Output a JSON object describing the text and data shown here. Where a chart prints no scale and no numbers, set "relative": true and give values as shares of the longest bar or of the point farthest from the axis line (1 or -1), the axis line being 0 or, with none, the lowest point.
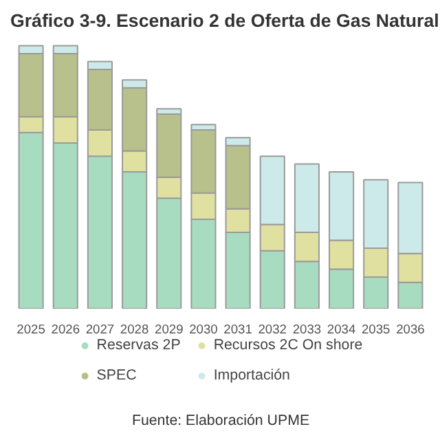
{
  "chart_data": {
    "type": "bar",
    "title": "Gráfico 3-9. Escenario 2 de Oferta de Gas Natural",
    "stacked": true,
    "relative": true,
    "legend": "bottom",
    "categories": [
      "2025",
      "2026",
      "2027",
      "2028",
      "2029",
      "2030",
      "2031",
      "2032",
      "2033",
      "2034",
      "2035",
      "2036"
    ],
    "series": [
      {
        "name": "Reservas 2P",
        "color": "#a8dcc0",
        "values": [
          0.67,
          0.63,
          0.58,
          0.52,
          0.42,
          0.34,
          0.29,
          0.22,
          0.18,
          0.15,
          0.12,
          0.1
        ]
      },
      {
        "name": "Recursos 2C On shore",
        "color": "#e0e0a0",
        "values": [
          0.06,
          0.1,
          0.1,
          0.08,
          0.08,
          0.1,
          0.09,
          0.1,
          0.11,
          0.11,
          0.11,
          0.11
        ]
      },
      {
        "name": "SPEC",
        "color": "#b8c08c",
        "values": [
          0.24,
          0.24,
          0.23,
          0.24,
          0.24,
          0.24,
          0.24,
          null,
          null,
          null,
          null,
          null
        ]
      },
      {
        "name": "Importación",
        "color": "#cdeaea",
        "values": [
          0.03,
          0.03,
          0.03,
          0.03,
          0.02,
          0.02,
          0.03,
          0.26,
          0.26,
          0.26,
          0.26,
          0.27
        ]
      }
    ],
    "annotations": [
      "Fuente: Elaboración UPME"
    ]
  }
}
